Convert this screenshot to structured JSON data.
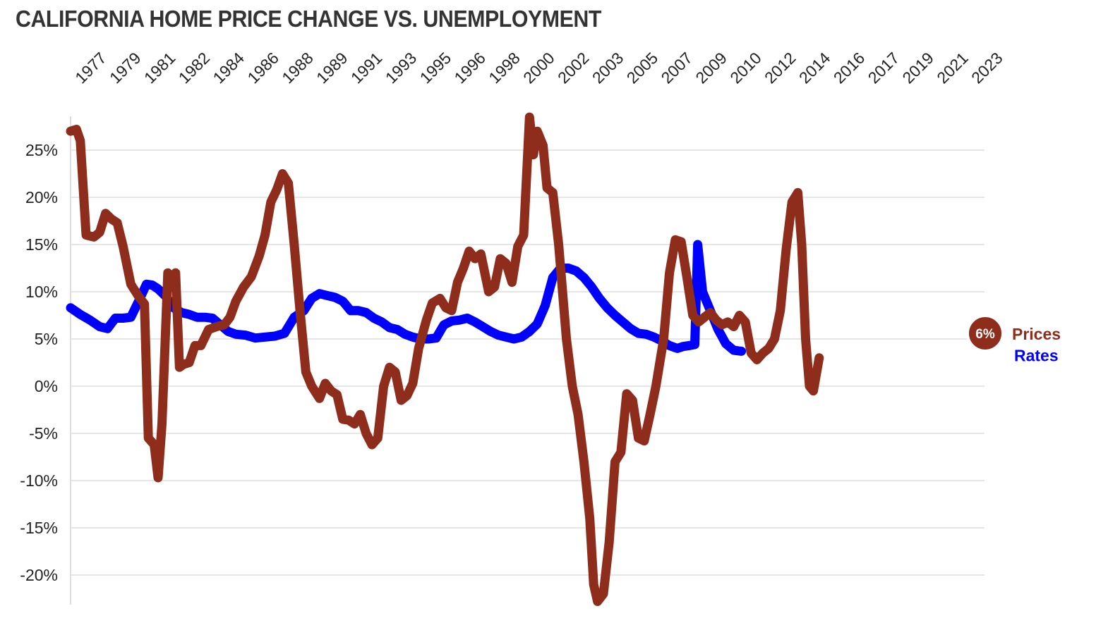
{
  "chart_data": {
    "type": "line",
    "title": "CALIFORNIA HOME PRICE CHANGE VS. UNEMPLOYMENT",
    "xlabel": "",
    "ylabel": "",
    "x_tick_labels": [
      "1977",
      "1979",
      "1981",
      "1982",
      "1984",
      "1986",
      "1988",
      "1989",
      "1991",
      "1993",
      "1995",
      "1996",
      "1998",
      "2000",
      "2002",
      "2003",
      "2005",
      "2007",
      "2009",
      "2010",
      "2012",
      "2014",
      "2016",
      "2017",
      "2019",
      "2021",
      "2023"
    ],
    "x_range": [
      1976.5,
      2023.5
    ],
    "y_tick_labels": [
      "25%",
      "20%",
      "15%",
      "10%",
      "5%",
      "0%",
      "-5%",
      "-10%",
      "-15%",
      "-20%"
    ],
    "y_ticks": [
      25,
      20,
      15,
      10,
      5,
      0,
      -5,
      -10,
      -15,
      -20
    ],
    "ylim": [
      -23,
      29
    ],
    "grid": true,
    "legend": "end-of-line labels",
    "end_badge": {
      "text": "6%",
      "color": "#8f2d1c"
    },
    "series": [
      {
        "name": "Prices",
        "color": "#8f2d1c",
        "points": [
          [
            1976.5,
            27.0
          ],
          [
            1976.8,
            27.2
          ],
          [
            1977.0,
            26.0
          ],
          [
            1977.3,
            16.0
          ],
          [
            1977.7,
            15.8
          ],
          [
            1978.0,
            16.3
          ],
          [
            1978.3,
            18.3
          ],
          [
            1978.6,
            17.7
          ],
          [
            1978.9,
            17.3
          ],
          [
            1979.2,
            14.8
          ],
          [
            1979.6,
            10.8
          ],
          [
            1980.0,
            9.5
          ],
          [
            1980.3,
            8.7
          ],
          [
            1980.5,
            -5.5
          ],
          [
            1980.8,
            -6.2
          ],
          [
            1981.0,
            -9.7
          ],
          [
            1981.2,
            -4.0
          ],
          [
            1981.5,
            12.0
          ],
          [
            1981.7,
            10.5
          ],
          [
            1981.9,
            12.0
          ],
          [
            1982.1,
            2.0
          ],
          [
            1982.3,
            2.3
          ],
          [
            1982.6,
            2.5
          ],
          [
            1982.9,
            4.3
          ],
          [
            1983.2,
            4.3
          ],
          [
            1983.6,
            6.0
          ],
          [
            1984.0,
            6.3
          ],
          [
            1984.4,
            6.5
          ],
          [
            1984.7,
            7.3
          ],
          [
            1985.0,
            9.0
          ],
          [
            1985.4,
            10.5
          ],
          [
            1985.8,
            11.6
          ],
          [
            1986.2,
            13.8
          ],
          [
            1986.5,
            16.0
          ],
          [
            1986.8,
            19.5
          ],
          [
            1987.1,
            20.8
          ],
          [
            1987.4,
            22.5
          ],
          [
            1987.7,
            21.5
          ],
          [
            1988.0,
            15.0
          ],
          [
            1988.3,
            8.0
          ],
          [
            1988.6,
            1.5
          ],
          [
            1988.9,
            0.0
          ],
          [
            1989.3,
            -1.3
          ],
          [
            1989.6,
            0.3
          ],
          [
            1989.9,
            -0.5
          ],
          [
            1990.2,
            -0.9
          ],
          [
            1990.5,
            -3.5
          ],
          [
            1990.8,
            -3.6
          ],
          [
            1991.1,
            -4.0
          ],
          [
            1991.4,
            -3.0
          ],
          [
            1991.7,
            -5.0
          ],
          [
            1992.0,
            -6.2
          ],
          [
            1992.3,
            -5.5
          ],
          [
            1992.6,
            0.0
          ],
          [
            1992.9,
            2.0
          ],
          [
            1993.2,
            1.5
          ],
          [
            1993.5,
            -1.5
          ],
          [
            1993.8,
            -1.0
          ],
          [
            1994.1,
            0.3
          ],
          [
            1994.4,
            4.0
          ],
          [
            1994.8,
            7.0
          ],
          [
            1995.1,
            8.8
          ],
          [
            1995.5,
            9.3
          ],
          [
            1995.8,
            8.3
          ],
          [
            1996.1,
            8.0
          ],
          [
            1996.4,
            11.0
          ],
          [
            1996.7,
            12.5
          ],
          [
            1997.0,
            14.3
          ],
          [
            1997.3,
            13.5
          ],
          [
            1997.6,
            14.0
          ],
          [
            1998.0,
            10.0
          ],
          [
            1998.3,
            10.5
          ],
          [
            1998.6,
            13.5
          ],
          [
            1998.9,
            13.0
          ],
          [
            1999.2,
            11.0
          ],
          [
            1999.5,
            14.8
          ],
          [
            1999.8,
            16.0
          ],
          [
            2000.1,
            28.5
          ],
          [
            2000.3,
            24.5
          ],
          [
            2000.5,
            27.0
          ],
          [
            2000.8,
            25.5
          ],
          [
            2001.0,
            21.0
          ],
          [
            2001.3,
            20.5
          ],
          [
            2001.6,
            15.0
          ],
          [
            2002.0,
            5.0
          ],
          [
            2002.3,
            0.0
          ],
          [
            2002.6,
            -3.0
          ],
          [
            2002.9,
            -8.0
          ],
          [
            2003.2,
            -14.0
          ],
          [
            2003.4,
            -21.0
          ],
          [
            2003.6,
            -22.8
          ],
          [
            2003.9,
            -22.0
          ],
          [
            2004.2,
            -16.5
          ],
          [
            2004.5,
            -8.0
          ],
          [
            2004.8,
            -7.0
          ],
          [
            2005.1,
            -0.8
          ],
          [
            2005.4,
            -1.5
          ],
          [
            2005.7,
            -5.5
          ],
          [
            2006.0,
            -5.8
          ],
          [
            2006.3,
            -3.0
          ],
          [
            2006.6,
            0.0
          ],
          [
            2007.0,
            5.0
          ],
          [
            2007.3,
            12.0
          ],
          [
            2007.6,
            15.5
          ],
          [
            2007.9,
            15.3
          ],
          [
            2008.2,
            11.5
          ],
          [
            2008.5,
            7.5
          ],
          [
            2008.8,
            6.8
          ],
          [
            2009.1,
            7.3
          ],
          [
            2009.4,
            7.8
          ],
          [
            2009.7,
            7.0
          ],
          [
            2010.0,
            6.5
          ],
          [
            2010.3,
            6.8
          ],
          [
            2010.6,
            6.3
          ],
          [
            2010.9,
            7.5
          ],
          [
            2011.2,
            6.8
          ],
          [
            2011.5,
            3.5
          ],
          [
            2011.8,
            2.8
          ],
          [
            2012.1,
            3.5
          ],
          [
            2012.4,
            4.0
          ],
          [
            2012.7,
            5.0
          ],
          [
            2013.0,
            8.0
          ],
          [
            2013.3,
            14.5
          ],
          [
            2013.6,
            19.5
          ],
          [
            2013.9,
            20.5
          ],
          [
            2014.1,
            15.0
          ],
          [
            2014.3,
            5.0
          ],
          [
            2014.5,
            0.0
          ],
          [
            2014.7,
            -0.5
          ],
          [
            2015.0,
            3.0
          ]
        ]
      },
      {
        "name": "Rates",
        "color": "#0000ff",
        "points": [
          [
            1976.5,
            8.3
          ],
          [
            1977.0,
            7.6
          ],
          [
            1977.5,
            7.0
          ],
          [
            1978.0,
            6.3
          ],
          [
            1978.4,
            6.1
          ],
          [
            1978.8,
            7.2
          ],
          [
            1979.2,
            7.2
          ],
          [
            1979.6,
            7.3
          ],
          [
            1980.0,
            9.0
          ],
          [
            1980.4,
            10.8
          ],
          [
            1980.7,
            10.7
          ],
          [
            1981.0,
            10.3
          ],
          [
            1981.4,
            9.5
          ],
          [
            1981.8,
            8.3
          ],
          [
            1982.2,
            7.8
          ],
          [
            1982.6,
            7.6
          ],
          [
            1983.0,
            7.3
          ],
          [
            1983.4,
            7.3
          ],
          [
            1983.8,
            7.2
          ],
          [
            1984.2,
            6.5
          ],
          [
            1984.6,
            5.8
          ],
          [
            1985.0,
            5.5
          ],
          [
            1985.5,
            5.4
          ],
          [
            1986.0,
            5.1
          ],
          [
            1986.5,
            5.2
          ],
          [
            1987.0,
            5.3
          ],
          [
            1987.5,
            5.6
          ],
          [
            1988.0,
            7.3
          ],
          [
            1988.5,
            8.0
          ],
          [
            1988.9,
            9.3
          ],
          [
            1989.3,
            9.8
          ],
          [
            1989.7,
            9.6
          ],
          [
            1990.1,
            9.4
          ],
          [
            1990.5,
            9.0
          ],
          [
            1990.9,
            8.0
          ],
          [
            1991.3,
            8.0
          ],
          [
            1991.7,
            7.8
          ],
          [
            1992.1,
            7.2
          ],
          [
            1992.5,
            6.8
          ],
          [
            1992.9,
            6.2
          ],
          [
            1993.3,
            6.0
          ],
          [
            1993.7,
            5.5
          ],
          [
            1994.1,
            5.2
          ],
          [
            1994.5,
            5.0
          ],
          [
            1994.9,
            5.0
          ],
          [
            1995.3,
            5.1
          ],
          [
            1995.7,
            6.5
          ],
          [
            1996.1,
            6.9
          ],
          [
            1996.5,
            7.0
          ],
          [
            1996.9,
            7.2
          ],
          [
            1997.3,
            6.8
          ],
          [
            1997.7,
            6.3
          ],
          [
            1998.1,
            5.8
          ],
          [
            1998.5,
            5.4
          ],
          [
            1998.9,
            5.2
          ],
          [
            1999.3,
            5.0
          ],
          [
            1999.7,
            5.2
          ],
          [
            2000.1,
            5.8
          ],
          [
            2000.5,
            6.6
          ],
          [
            2000.9,
            8.5
          ],
          [
            2001.3,
            11.5
          ],
          [
            2001.7,
            12.5
          ],
          [
            2002.1,
            12.5
          ],
          [
            2002.5,
            12.2
          ],
          [
            2002.9,
            11.5
          ],
          [
            2003.3,
            10.5
          ],
          [
            2003.7,
            9.3
          ],
          [
            2004.1,
            8.3
          ],
          [
            2004.5,
            7.5
          ],
          [
            2004.9,
            6.8
          ],
          [
            2005.3,
            6.1
          ],
          [
            2005.7,
            5.6
          ],
          [
            2006.1,
            5.5
          ],
          [
            2006.5,
            5.2
          ],
          [
            2006.9,
            4.8
          ],
          [
            2007.3,
            4.3
          ],
          [
            2007.7,
            4.0
          ],
          [
            2008.0,
            4.2
          ],
          [
            2008.3,
            4.3
          ],
          [
            2008.6,
            4.4
          ],
          [
            2008.75,
            15.0
          ],
          [
            2009.0,
            10.0
          ],
          [
            2009.4,
            8.0
          ],
          [
            2009.8,
            6.0
          ],
          [
            2010.2,
            4.5
          ],
          [
            2010.6,
            3.8
          ],
          [
            2011.0,
            3.7
          ]
        ]
      }
    ]
  }
}
